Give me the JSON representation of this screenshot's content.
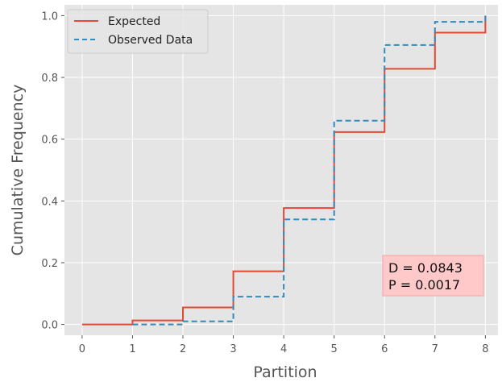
{
  "chart_data": {
    "type": "line",
    "title": "",
    "xlabel": "Partition",
    "ylabel": "Cumulative Frequency",
    "xlim": [
      -0.35,
      8.25
    ],
    "ylim": [
      -0.035,
      1.035
    ],
    "xticks": [
      0,
      1,
      2,
      3,
      4,
      5,
      6,
      7,
      8
    ],
    "yticks": [
      0.0,
      0.2,
      0.4,
      0.6,
      0.8,
      1.0
    ],
    "xtick_labels": [
      "0",
      "1",
      "2",
      "3",
      "4",
      "5",
      "6",
      "7",
      "8"
    ],
    "ytick_labels": [
      "0.0",
      "0.2",
      "0.4",
      "0.6",
      "0.8",
      "1.0"
    ],
    "grid": true,
    "legend_position": "top-left",
    "style": "step",
    "series": [
      {
        "name": "Expected",
        "color": "#E24A33",
        "dash": "solid",
        "x": [
          0,
          1,
          2,
          3,
          4,
          5,
          6,
          7,
          8
        ],
        "y": [
          0.0,
          0.013,
          0.055,
          0.172,
          0.377,
          0.623,
          0.828,
          0.945,
          1.0
        ]
      },
      {
        "name": "Observed Data",
        "color": "#348ABD",
        "dash": "dashed",
        "x": [
          1,
          2,
          3,
          4,
          5,
          6,
          7,
          8
        ],
        "y": [
          0.0,
          0.01,
          0.09,
          0.34,
          0.66,
          0.905,
          0.98,
          1.0
        ]
      }
    ],
    "annotation": {
      "lines": [
        "D = 0.0843",
        "P = 0.0017"
      ],
      "background": "#FFC9C9",
      "border": "#F4A3A3"
    }
  }
}
